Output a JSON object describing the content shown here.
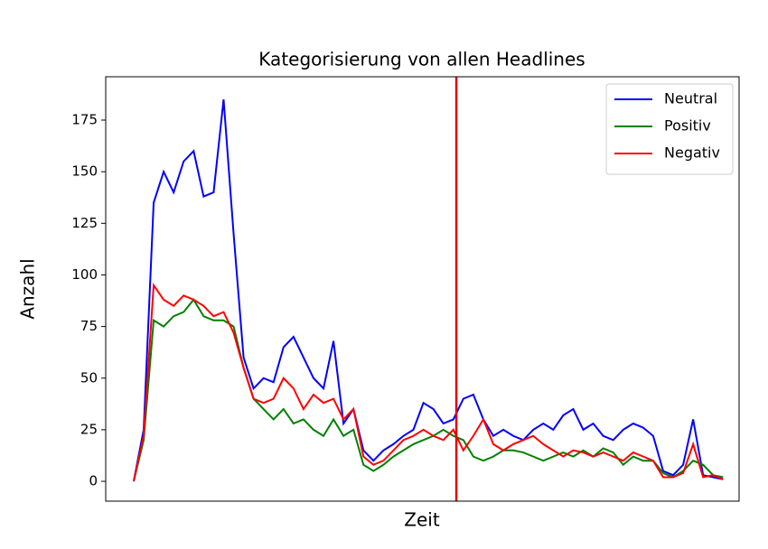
{
  "chart_data": {
    "type": "line",
    "title": "Kategorisierung von allen Headlines",
    "xlabel": "Zeit",
    "ylabel": "Anzahl",
    "x": [
      0,
      1,
      2,
      3,
      4,
      5,
      6,
      7,
      8,
      9,
      10,
      11,
      12,
      13,
      14,
      15,
      16,
      17,
      18,
      19,
      20,
      21,
      22,
      23,
      24,
      25,
      26,
      27,
      28,
      29,
      30,
      31,
      32,
      33,
      34,
      35,
      36,
      37,
      38,
      39,
      40,
      41,
      42,
      43,
      44,
      45,
      46,
      47,
      48,
      49,
      50,
      51,
      52,
      53,
      54,
      55,
      56,
      57,
      58,
      59
    ],
    "xlim": [
      -2.8,
      60.6
    ],
    "ylim": [
      -9.6,
      196
    ],
    "yticks": [
      0,
      25,
      50,
      75,
      100,
      125,
      150,
      175
    ],
    "vline": {
      "x": 32.3,
      "color": "#e00000"
    },
    "legend": "upper right",
    "series": [
      {
        "name": "Neutral",
        "color": "#0000ff",
        "values": [
          0,
          25,
          135,
          150,
          140,
          155,
          160,
          138,
          140,
          185,
          120,
          60,
          45,
          50,
          48,
          65,
          70,
          60,
          50,
          45,
          68,
          28,
          35,
          15,
          10,
          15,
          18,
          22,
          25,
          38,
          35,
          28,
          30,
          40,
          42,
          30,
          22,
          25,
          22,
          20,
          25,
          28,
          25,
          32,
          35,
          25,
          28,
          22,
          20,
          25,
          28,
          26,
          22,
          5,
          3,
          8,
          30,
          3,
          2,
          1
        ]
      },
      {
        "name": "Positiv",
        "color": "#008000",
        "values": [
          0,
          20,
          78,
          75,
          80,
          82,
          88,
          80,
          78,
          78,
          75,
          55,
          40,
          35,
          30,
          35,
          28,
          30,
          25,
          22,
          30,
          22,
          25,
          8,
          5,
          8,
          12,
          15,
          18,
          20,
          22,
          25,
          22,
          20,
          12,
          10,
          12,
          15,
          15,
          14,
          12,
          10,
          12,
          14,
          12,
          15,
          12,
          16,
          14,
          8,
          12,
          10,
          10,
          4,
          2,
          5,
          10,
          8,
          3,
          2
        ]
      },
      {
        "name": "Negativ",
        "color": "#ff0000",
        "values": [
          0,
          22,
          95,
          88,
          85,
          90,
          88,
          85,
          80,
          82,
          72,
          55,
          40,
          38,
          40,
          50,
          45,
          35,
          42,
          38,
          40,
          30,
          35,
          12,
          8,
          10,
          15,
          20,
          22,
          25,
          22,
          20,
          25,
          15,
          22,
          30,
          18,
          15,
          18,
          20,
          22,
          18,
          15,
          12,
          15,
          14,
          12,
          14,
          12,
          10,
          14,
          12,
          10,
          2,
          2,
          4,
          18,
          2,
          3,
          1
        ]
      }
    ]
  }
}
